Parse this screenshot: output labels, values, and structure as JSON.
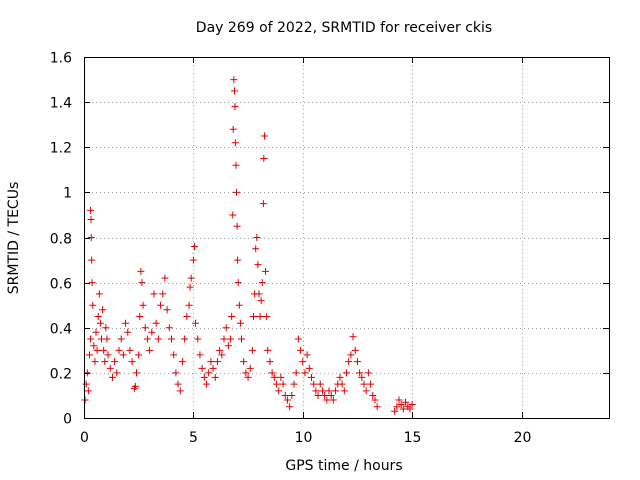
{
  "chart_data": {
    "type": "scatter",
    "title": "Day 269 of 2022, SRMTID for receiver ckis",
    "xlabel": "GPS time / hours",
    "ylabel": "SRMTID / TECUs",
    "xlim": [
      0,
      24
    ],
    "ylim": [
      0,
      1.6
    ],
    "x_ticks": [
      0,
      5,
      10,
      15,
      20
    ],
    "x_tick_labels": [
      "0",
      "5",
      "10",
      "15",
      "20"
    ],
    "y_ticks": [
      0,
      0.2,
      0.4,
      0.6,
      0.8,
      1.0,
      1.2,
      1.4,
      1.6
    ],
    "y_tick_labels": [
      "0",
      "0.2",
      "0.4",
      "0.6",
      "0.8",
      "1",
      "1.2",
      "1.4",
      "1.6"
    ],
    "grid": true,
    "marker": "+",
    "color": "#e00000",
    "series": [
      {
        "name": "SRMTID",
        "points": [
          [
            0.05,
            0.08
          ],
          [
            0.1,
            0.15
          ],
          [
            0.15,
            0.2
          ],
          [
            0.2,
            0.12
          ],
          [
            0.25,
            0.28
          ],
          [
            0.3,
            0.35
          ],
          [
            0.3,
            0.92
          ],
          [
            0.32,
            0.88
          ],
          [
            0.33,
            0.8
          ],
          [
            0.35,
            0.7
          ],
          [
            0.37,
            0.6
          ],
          [
            0.4,
            0.5
          ],
          [
            0.45,
            0.32
          ],
          [
            0.5,
            0.25
          ],
          [
            0.55,
            0.38
          ],
          [
            0.6,
            0.3
          ],
          [
            0.65,
            0.45
          ],
          [
            0.7,
            0.55
          ],
          [
            0.75,
            0.42
          ],
          [
            0.8,
            0.35
          ],
          [
            0.85,
            0.48
          ],
          [
            0.9,
            0.3
          ],
          [
            0.95,
            0.25
          ],
          [
            1.0,
            0.4
          ],
          [
            1.05,
            0.35
          ],
          [
            1.1,
            0.28
          ],
          [
            1.2,
            0.22
          ],
          [
            1.3,
            0.18
          ],
          [
            1.4,
            0.25
          ],
          [
            1.5,
            0.2
          ],
          [
            1.6,
            0.3
          ],
          [
            1.7,
            0.35
          ],
          [
            1.8,
            0.28
          ],
          [
            1.9,
            0.42
          ],
          [
            2.0,
            0.38
          ],
          [
            2.1,
            0.3
          ],
          [
            2.2,
            0.25
          ],
          [
            2.3,
            0.13
          ],
          [
            2.35,
            0.14
          ],
          [
            2.4,
            0.2
          ],
          [
            2.5,
            0.28
          ],
          [
            2.55,
            0.45
          ],
          [
            2.6,
            0.65
          ],
          [
            2.65,
            0.6
          ],
          [
            2.7,
            0.5
          ],
          [
            2.8,
            0.4
          ],
          [
            2.9,
            0.35
          ],
          [
            3.0,
            0.3
          ],
          [
            3.1,
            0.38
          ],
          [
            3.2,
            0.55
          ],
          [
            3.3,
            0.42
          ],
          [
            3.4,
            0.35
          ],
          [
            3.5,
            0.5
          ],
          [
            3.6,
            0.55
          ],
          [
            3.7,
            0.62
          ],
          [
            3.8,
            0.48
          ],
          [
            3.9,
            0.4
          ],
          [
            4.0,
            0.35
          ],
          [
            4.1,
            0.28
          ],
          [
            4.2,
            0.2
          ],
          [
            4.3,
            0.15
          ],
          [
            4.4,
            0.12
          ],
          [
            4.5,
            0.25
          ],
          [
            4.6,
            0.35
          ],
          [
            4.7,
            0.45
          ],
          [
            4.8,
            0.5
          ],
          [
            4.85,
            0.58
          ],
          [
            4.9,
            0.62
          ],
          [
            5.0,
            0.7
          ],
          [
            5.05,
            0.76
          ],
          [
            5.1,
            0.42
          ],
          [
            5.2,
            0.35
          ],
          [
            5.3,
            0.28
          ],
          [
            5.4,
            0.22
          ],
          [
            5.5,
            0.18
          ],
          [
            5.6,
            0.15
          ],
          [
            5.7,
            0.2
          ],
          [
            5.8,
            0.25
          ],
          [
            5.9,
            0.22
          ],
          [
            6.0,
            0.18
          ],
          [
            6.1,
            0.25
          ],
          [
            6.2,
            0.3
          ],
          [
            6.3,
            0.28
          ],
          [
            6.4,
            0.35
          ],
          [
            6.5,
            0.4
          ],
          [
            6.6,
            0.32
          ],
          [
            6.7,
            0.35
          ],
          [
            6.75,
            0.45
          ],
          [
            6.8,
            0.9
          ],
          [
            6.82,
            1.28
          ],
          [
            6.85,
            1.5
          ],
          [
            6.88,
            1.45
          ],
          [
            6.9,
            1.38
          ],
          [
            6.92,
            1.22
          ],
          [
            6.95,
            1.12
          ],
          [
            6.97,
            1.0
          ],
          [
            7.0,
            0.85
          ],
          [
            7.02,
            0.7
          ],
          [
            7.05,
            0.6
          ],
          [
            7.1,
            0.5
          ],
          [
            7.15,
            0.42
          ],
          [
            7.2,
            0.35
          ],
          [
            7.3,
            0.25
          ],
          [
            7.4,
            0.2
          ],
          [
            7.5,
            0.18
          ],
          [
            7.6,
            0.22
          ],
          [
            7.7,
            0.3
          ],
          [
            7.75,
            0.45
          ],
          [
            7.8,
            0.55
          ],
          [
            7.85,
            0.75
          ],
          [
            7.9,
            0.8
          ],
          [
            7.95,
            0.68
          ],
          [
            8.0,
            0.55
          ],
          [
            8.05,
            0.45
          ],
          [
            8.1,
            0.52
          ],
          [
            8.15,
            0.6
          ],
          [
            8.2,
            0.95
          ],
          [
            8.22,
            1.15
          ],
          [
            8.25,
            1.25
          ],
          [
            8.3,
            0.65
          ],
          [
            8.35,
            0.45
          ],
          [
            8.4,
            0.3
          ],
          [
            8.5,
            0.25
          ],
          [
            8.6,
            0.2
          ],
          [
            8.7,
            0.18
          ],
          [
            8.8,
            0.15
          ],
          [
            8.9,
            0.12
          ],
          [
            9.0,
            0.18
          ],
          [
            9.1,
            0.15
          ],
          [
            9.2,
            0.1
          ],
          [
            9.3,
            0.08
          ],
          [
            9.4,
            0.05
          ],
          [
            9.5,
            0.1
          ],
          [
            9.6,
            0.15
          ],
          [
            9.7,
            0.2
          ],
          [
            9.8,
            0.35
          ],
          [
            9.9,
            0.3
          ],
          [
            10.0,
            0.25
          ],
          [
            10.1,
            0.2
          ],
          [
            10.2,
            0.28
          ],
          [
            10.3,
            0.22
          ],
          [
            10.4,
            0.18
          ],
          [
            10.5,
            0.15
          ],
          [
            10.6,
            0.12
          ],
          [
            10.7,
            0.1
          ],
          [
            10.8,
            0.15
          ],
          [
            10.9,
            0.12
          ],
          [
            11.0,
            0.1
          ],
          [
            11.1,
            0.08
          ],
          [
            11.2,
            0.12
          ],
          [
            11.3,
            0.1
          ],
          [
            11.4,
            0.08
          ],
          [
            11.5,
            0.12
          ],
          [
            11.6,
            0.15
          ],
          [
            11.7,
            0.18
          ],
          [
            11.8,
            0.15
          ],
          [
            11.9,
            0.12
          ],
          [
            12.0,
            0.2
          ],
          [
            12.1,
            0.25
          ],
          [
            12.2,
            0.28
          ],
          [
            12.3,
            0.36
          ],
          [
            12.4,
            0.3
          ],
          [
            12.5,
            0.25
          ],
          [
            12.6,
            0.2
          ],
          [
            12.7,
            0.18
          ],
          [
            12.8,
            0.15
          ],
          [
            12.9,
            0.12
          ],
          [
            13.0,
            0.2
          ],
          [
            13.1,
            0.15
          ],
          [
            13.2,
            0.1
          ],
          [
            13.3,
            0.08
          ],
          [
            13.4,
            0.05
          ],
          [
            14.2,
            0.03
          ],
          [
            14.3,
            0.05
          ],
          [
            14.4,
            0.08
          ],
          [
            14.5,
            0.06
          ],
          [
            14.6,
            0.04
          ],
          [
            14.7,
            0.07
          ],
          [
            14.8,
            0.05
          ],
          [
            14.9,
            0.04
          ],
          [
            15.0,
            0.06
          ]
        ]
      }
    ]
  }
}
